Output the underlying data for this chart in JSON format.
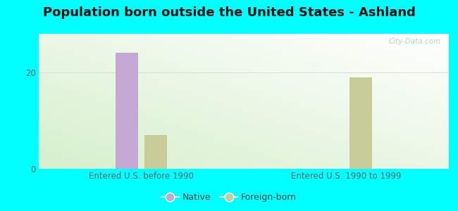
{
  "title": "Population born outside the United States - Ashland",
  "background_color": "#00FFFF",
  "groups": [
    "Entered U.S. before 1990",
    "Entered U.S. 1990 to 1999"
  ],
  "native_values": [
    24,
    0
  ],
  "foreign_values": [
    7,
    19
  ],
  "native_color": "#c4a8d4",
  "foreign_color": "#c8cc96",
  "ylim": [
    0,
    28
  ],
  "yticks": [
    0,
    20
  ],
  "bar_width": 0.22,
  "legend_labels": [
    "Native",
    "Foreign-born"
  ],
  "watermark": "City-Data.com",
  "title_fontsize": 13,
  "axis_label_fontsize": 8.5,
  "legend_fontsize": 9
}
